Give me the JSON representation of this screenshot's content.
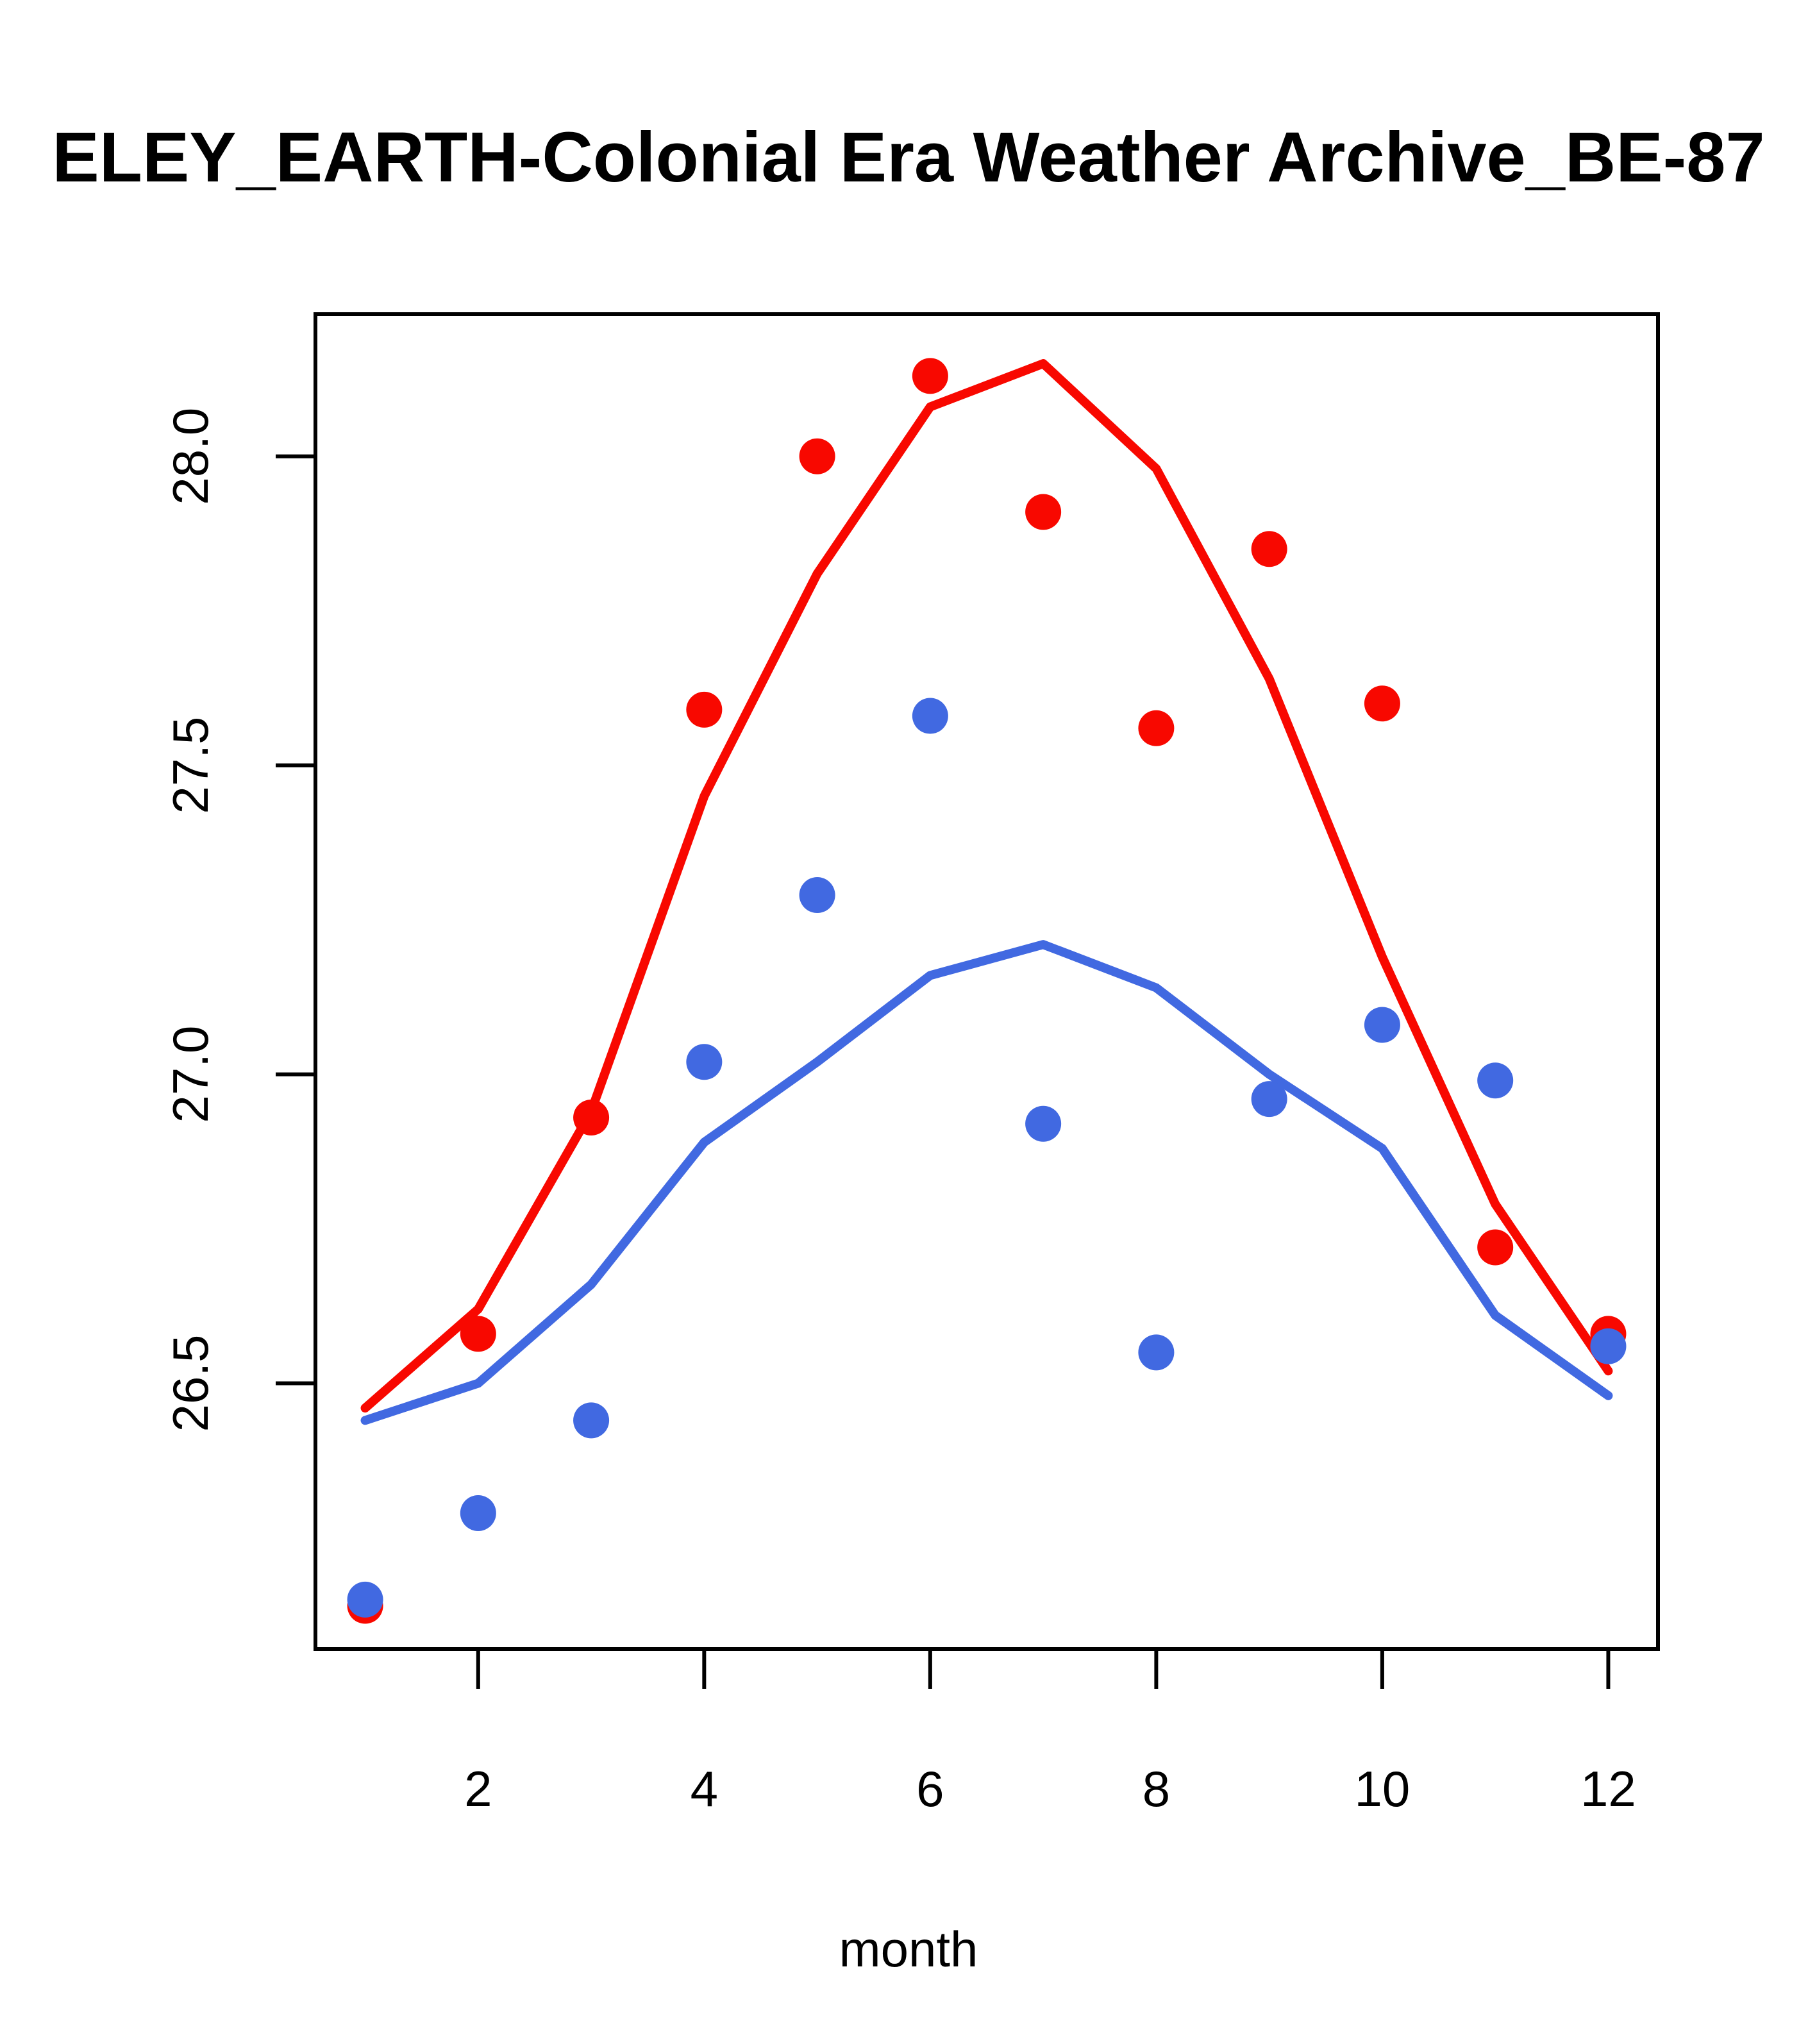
{
  "title": "ELEY_EARTH-Colonial Era Weather Archive_BE-87",
  "chart_data": {
    "type": "line",
    "title": "ELEY_EARTH-Colonial Era Weather Archive_BE-87",
    "xlabel": "month",
    "ylabel": "",
    "grid": false,
    "legend_position": "none",
    "xlim": [
      0.56,
      12.44
    ],
    "ylim": [
      26.07,
      28.23
    ],
    "x_ticks": [
      2,
      4,
      6,
      8,
      10,
      12
    ],
    "x_tick_labels": [
      "2",
      "4",
      "6",
      "8",
      "10",
      "12"
    ],
    "y_ticks": [
      26.5,
      27.0,
      27.5,
      28.0
    ],
    "y_tick_labels": [
      "26.5",
      "27.0",
      "27.5",
      "28.0"
    ],
    "x": [
      1,
      2,
      3,
      4,
      5,
      6,
      7,
      8,
      9,
      10,
      11,
      12
    ],
    "colors": {
      "red": "#F80800",
      "blue": "#4169E1",
      "axis": "#000000"
    },
    "series": [
      {
        "name": "red-line",
        "kind": "line",
        "color": "#F80800",
        "values": [
          26.46,
          26.62,
          26.94,
          27.45,
          27.81,
          28.08,
          28.15,
          27.98,
          27.64,
          27.19,
          26.79,
          26.52
        ]
      },
      {
        "name": "red-points",
        "kind": "scatter",
        "color": "#F80800",
        "values": [
          26.14,
          26.58,
          26.93,
          27.59,
          28.0,
          28.13,
          27.91,
          27.56,
          27.85,
          27.6,
          26.72,
          26.58
        ]
      },
      {
        "name": "blue-line",
        "kind": "line",
        "color": "#4169E1",
        "values": [
          26.44,
          26.5,
          26.66,
          26.89,
          27.02,
          27.16,
          27.21,
          27.14,
          27.0,
          26.88,
          26.61,
          26.48
        ]
      },
      {
        "name": "blue-points",
        "kind": "scatter",
        "color": "#4169E1",
        "values": [
          26.15,
          26.29,
          26.44,
          27.02,
          27.29,
          27.58,
          26.92,
          26.55,
          26.96,
          27.08,
          26.99,
          26.56
        ]
      }
    ]
  }
}
